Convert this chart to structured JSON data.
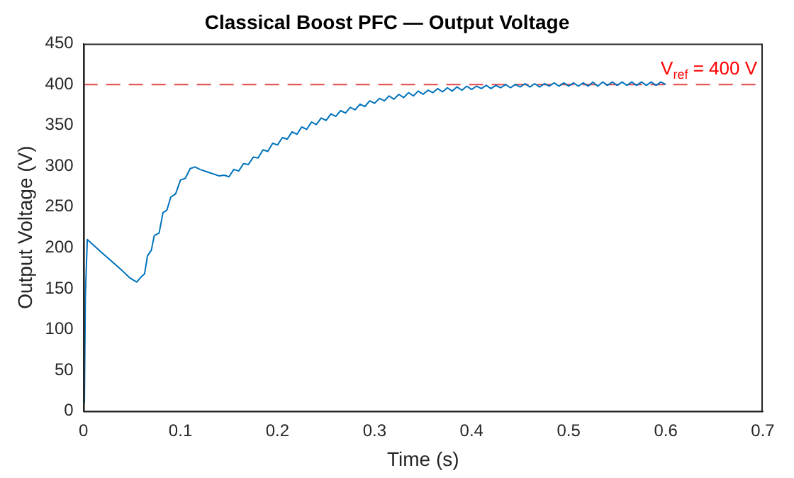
{
  "chart_data": {
    "type": "line",
    "title": "Classical Boost PFC — Output Voltage",
    "xlabel": "Time (s)",
    "ylabel": "Output Voltage (V)",
    "xlim": [
      0,
      0.7
    ],
    "xticks": [
      0,
      0.1,
      0.2,
      0.3,
      0.4,
      0.5,
      0.6,
      0.7
    ],
    "ylim": [
      0,
      450
    ],
    "yticks": [
      0,
      50,
      100,
      150,
      200,
      250,
      300,
      350,
      400,
      450
    ],
    "grid": false,
    "legend": false,
    "marker": "none",
    "line_style": "solid",
    "ref_lines": [
      {
        "axis": "y",
        "value": 400,
        "label": "V$_{ref}$ = 400 V",
        "color": "#e34a4a",
        "line_style": "dashed"
      }
    ],
    "series": [
      {
        "color": "#0072bd",
        "x": [
          0.001,
          0.002,
          0.004,
          0.02,
          0.04,
          0.048,
          0.052,
          0.055,
          0.06,
          0.063,
          0.066,
          0.07,
          0.073,
          0.078,
          0.082,
          0.086,
          0.09,
          0.095,
          0.1,
          0.105,
          0.11,
          0.115,
          0.12,
          0.13,
          0.14,
          0.145,
          0.15,
          0.155,
          0.16,
          0.165,
          0.17,
          0.175,
          0.18,
          0.185,
          0.19,
          0.195,
          0.2,
          0.205,
          0.21,
          0.215,
          0.22,
          0.225,
          0.23,
          0.235,
          0.24,
          0.245,
          0.25,
          0.255,
          0.26,
          0.265,
          0.27,
          0.275,
          0.28,
          0.285,
          0.29,
          0.295,
          0.3,
          0.305,
          0.31,
          0.315,
          0.32,
          0.325,
          0.33,
          0.335,
          0.34,
          0.345,
          0.35,
          0.355,
          0.36,
          0.365,
          0.37,
          0.375,
          0.38,
          0.385,
          0.39,
          0.395,
          0.4,
          0.405,
          0.41,
          0.415,
          0.42,
          0.425,
          0.43,
          0.435,
          0.44,
          0.445,
          0.45,
          0.455,
          0.46,
          0.465,
          0.47,
          0.475,
          0.48,
          0.485,
          0.49,
          0.495,
          0.5,
          0.505,
          0.51,
          0.515,
          0.52,
          0.525,
          0.53,
          0.535,
          0.54,
          0.545,
          0.55,
          0.555,
          0.56,
          0.565,
          0.57,
          0.575,
          0.58,
          0.585,
          0.59,
          0.595,
          0.6
        ],
        "values": [
          10,
          140,
          210,
          193,
          172,
          163,
          160,
          158,
          165,
          168,
          190,
          197,
          215,
          218,
          243,
          246,
          262,
          266,
          283,
          285,
          297,
          299,
          296,
          292,
          288,
          289,
          287,
          296,
          294,
          303,
          302,
          311,
          310,
          320,
          318,
          328,
          326,
          335,
          333,
          342,
          339,
          348,
          345,
          354,
          351,
          359,
          356,
          364,
          361,
          368,
          365,
          372,
          369,
          376,
          373,
          380,
          377,
          383,
          380,
          386,
          382,
          388,
          384,
          390,
          386,
          392,
          388,
          393,
          390,
          395,
          391,
          396,
          392,
          397,
          393,
          398,
          394,
          398,
          395,
          399,
          395,
          399,
          396,
          400,
          396,
          400,
          397,
          401,
          397,
          401,
          397,
          401,
          398,
          402,
          398,
          402,
          398,
          402,
          398,
          402,
          398,
          403,
          398,
          403,
          399,
          403,
          399,
          403,
          399,
          403,
          399,
          403,
          399,
          403,
          399,
          403,
          400
        ]
      }
    ]
  }
}
